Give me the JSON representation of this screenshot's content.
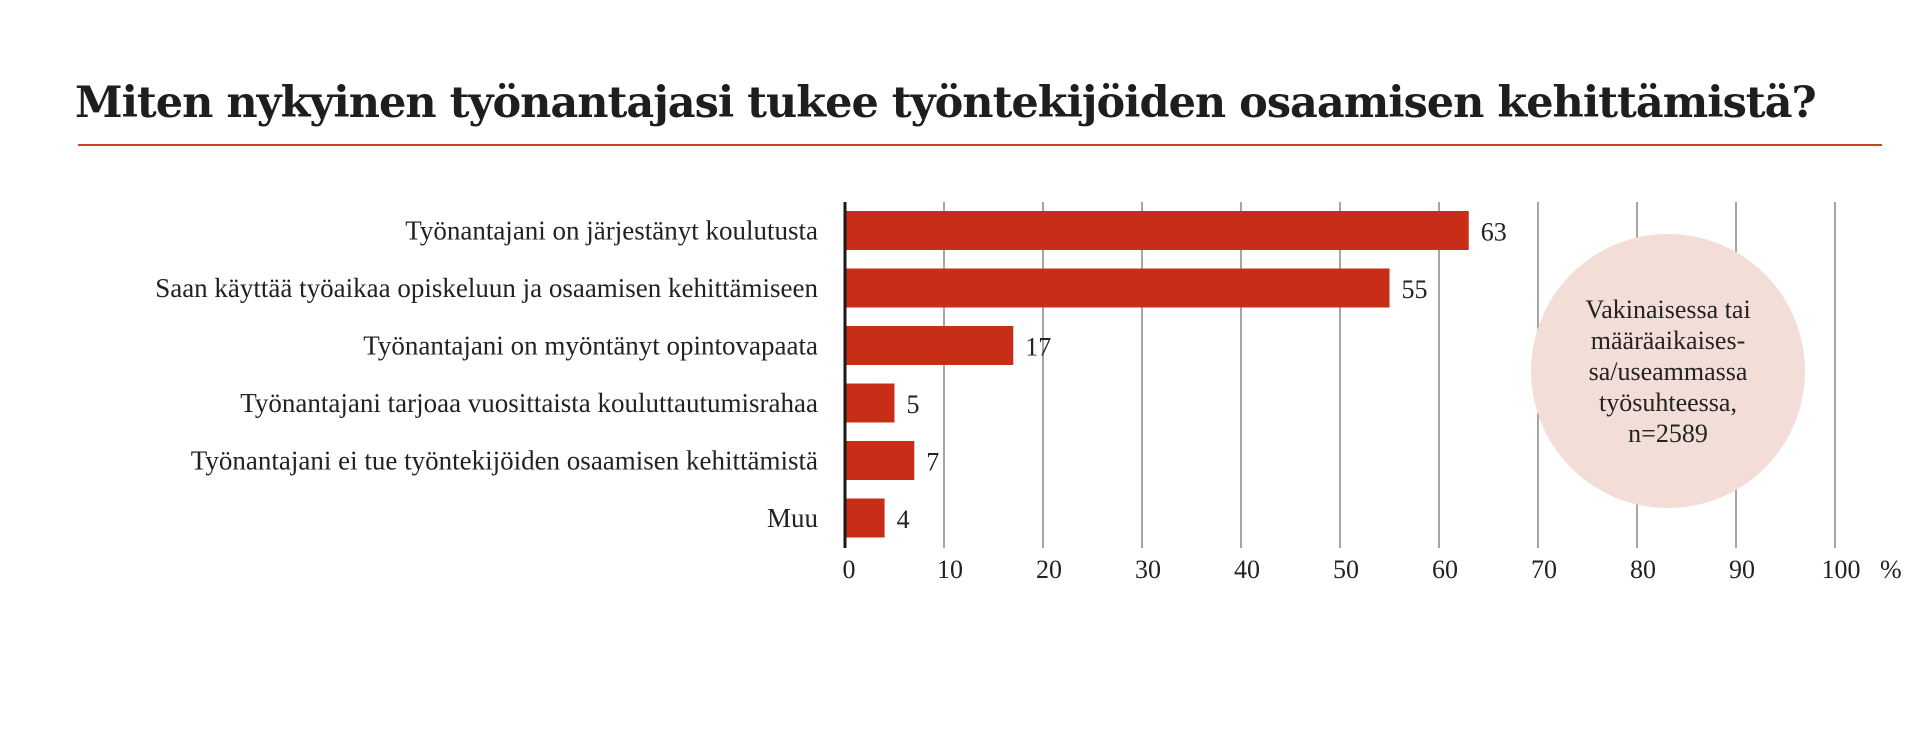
{
  "title": "Miten nykyinen työnantajasi tukee työntekijöiden osaamisen kehittämistä?",
  "note": "Vakinaisessa tai\nmääräaikaises-\nsa/useammassa\ntyösuhteessa,\nn=2589",
  "colors": {
    "bar": "#c82e17",
    "title_rule": "#c8432a",
    "note_bg": "#f3ddd7"
  },
  "chart_data": {
    "type": "bar",
    "orientation": "horizontal",
    "categories": [
      "Työnantajani on järjestänyt koulutusta",
      "Saan käyttää työaikaa opiskeluun ja osaamisen kehittämiseen",
      "Työnantajani on myöntänyt opintovapaata",
      "Työnantajani tarjoaa vuosittaista kouluttautumisrahaa",
      "Työnantajani ei tue työntekijöiden osaamisen kehittämistä",
      "Muu"
    ],
    "values": [
      63,
      55,
      17,
      5,
      7,
      4
    ],
    "data_labels": [
      "63",
      "55",
      "17",
      "5",
      "7",
      "4"
    ],
    "xlim": [
      0,
      100
    ],
    "xticks": [
      0,
      10,
      20,
      30,
      40,
      50,
      60,
      70,
      80,
      90,
      100
    ],
    "xtick_labels": [
      "0",
      "10",
      "20",
      "30",
      "40",
      "50",
      "60",
      "70",
      "80",
      "90",
      "100"
    ],
    "unit": "%",
    "grid": true
  }
}
